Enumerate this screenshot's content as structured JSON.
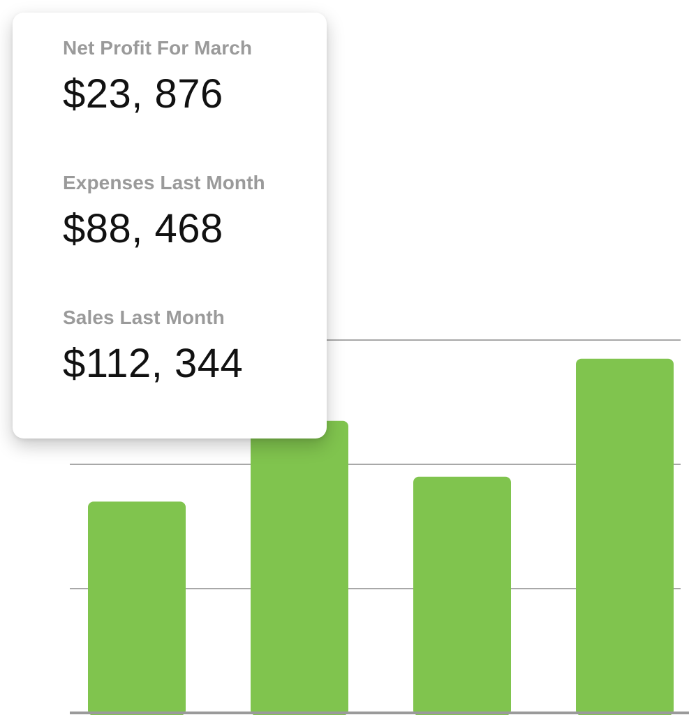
{
  "metrics_card": {
    "metrics": [
      {
        "label": "Net Profit For March",
        "value": "$23, 876"
      },
      {
        "label": "Expenses Last Month",
        "value": "$88, 468"
      },
      {
        "label": "Sales Last Month",
        "value": "$112, 344"
      }
    ]
  },
  "colors": {
    "bar": "#80c44e",
    "gridline": "#a8a8a8",
    "baseline": "#9a9a9a",
    "label_gray": "#9a9a9a",
    "value_black": "#111111"
  },
  "chart_data": {
    "type": "bar",
    "categories": [
      "",
      "",
      "",
      ""
    ],
    "values": [
      1.7,
      2.35,
      1.9,
      2.85
    ],
    "ylim": [
      0,
      3
    ],
    "grid": true,
    "title": "",
    "xlabel": "",
    "ylabel": ""
  }
}
